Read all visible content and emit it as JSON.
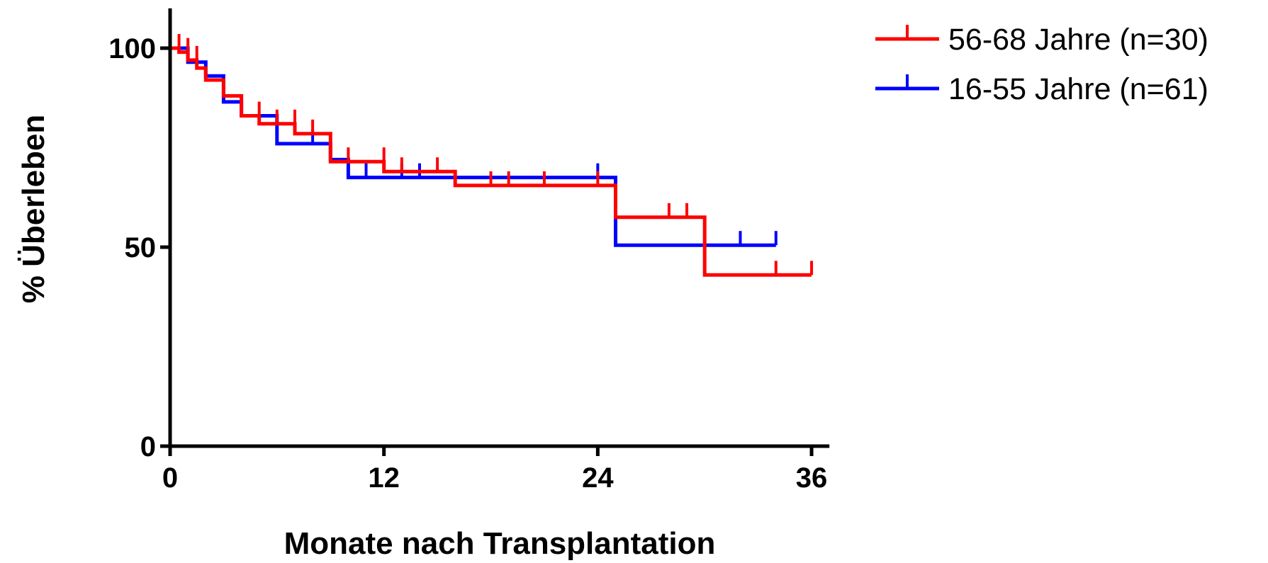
{
  "chart_data": {
    "type": "line",
    "subtype": "kaplan-meier",
    "title": "",
    "xlabel": "Monate nach Transplantation",
    "ylabel": "% Überleben",
    "xlim": [
      0,
      37
    ],
    "ylim": [
      0,
      110
    ],
    "x_ticks": [
      0,
      12,
      24,
      36
    ],
    "y_ticks": [
      0,
      50,
      100
    ],
    "x_tick_labels": [
      "0",
      "12",
      "24",
      "36"
    ],
    "y_tick_labels": [
      "0",
      "50",
      "100"
    ],
    "grid": false,
    "legend_position": "top-right",
    "series": [
      {
        "name": "56-68 Jahre (n=30)",
        "color": "#ff0000",
        "steps": [
          [
            0,
            100
          ],
          [
            0.5,
            100
          ],
          [
            0.5,
            99
          ],
          [
            1,
            99
          ],
          [
            1,
            97
          ],
          [
            1.5,
            97
          ],
          [
            1.5,
            95
          ],
          [
            2,
            95
          ],
          [
            2,
            92
          ],
          [
            3,
            92
          ],
          [
            3,
            88
          ],
          [
            4,
            88
          ],
          [
            4,
            83
          ],
          [
            5,
            83
          ],
          [
            5,
            81
          ],
          [
            7,
            81
          ],
          [
            7,
            78.5
          ],
          [
            9,
            78.5
          ],
          [
            9,
            71.5
          ],
          [
            12,
            71.5
          ],
          [
            12,
            69
          ],
          [
            16,
            69
          ],
          [
            16,
            65.5
          ],
          [
            25,
            65.5
          ],
          [
            25,
            57.5
          ],
          [
            30,
            57.5
          ],
          [
            30,
            43
          ],
          [
            36,
            43
          ]
        ],
        "censored": [
          [
            0.5,
            100
          ],
          [
            1,
            99
          ],
          [
            1.5,
            97
          ],
          [
            5,
            83
          ],
          [
            6,
            81
          ],
          [
            7,
            81
          ],
          [
            8,
            78.5
          ],
          [
            10,
            71.5
          ],
          [
            12,
            71.5
          ],
          [
            13,
            69
          ],
          [
            15,
            69
          ],
          [
            18,
            65.5
          ],
          [
            19,
            65.5
          ],
          [
            21,
            65.5
          ],
          [
            24,
            65.5
          ],
          [
            28,
            57.5
          ],
          [
            29,
            57.5
          ],
          [
            34,
            43
          ],
          [
            36,
            43
          ]
        ]
      },
      {
        "name": "16-55 Jahre (n=61)",
        "color": "#0000ff",
        "steps": [
          [
            0,
            100
          ],
          [
            1,
            100
          ],
          [
            1,
            96.5
          ],
          [
            2,
            96.5
          ],
          [
            2,
            93
          ],
          [
            3,
            93
          ],
          [
            3,
            86.5
          ],
          [
            4,
            86.5
          ],
          [
            4,
            83
          ],
          [
            6,
            83
          ],
          [
            6,
            76
          ],
          [
            9,
            76
          ],
          [
            9,
            72
          ],
          [
            10,
            72
          ],
          [
            10,
            67.5
          ],
          [
            25,
            67.5
          ],
          [
            25,
            50.5
          ],
          [
            34,
            50.5
          ]
        ],
        "censored": [
          [
            8,
            76
          ],
          [
            11,
            67.5
          ],
          [
            13,
            67.5
          ],
          [
            14,
            67.5
          ],
          [
            24,
            67.5
          ],
          [
            32,
            50.5
          ],
          [
            34,
            50.5
          ]
        ]
      }
    ]
  }
}
